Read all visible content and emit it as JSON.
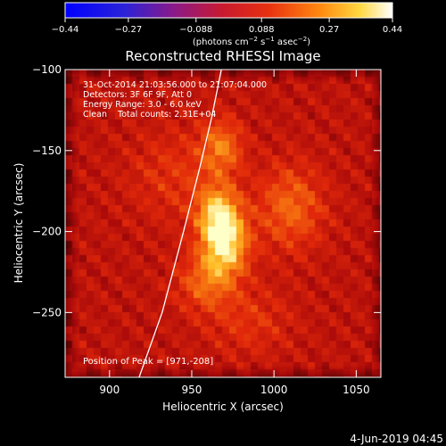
{
  "colorbar": {
    "ticks": [
      "−0.44",
      "−0.27",
      "−0.088",
      "0.088",
      "0.27",
      "0.44"
    ],
    "tick_values": [
      -0.44,
      -0.27,
      -0.088,
      0.088,
      0.27,
      0.44
    ],
    "units_html": "(photons cm<tspan baseline-shift=\"super\" font-size=\"7\">−2</tspan> s<tspan baseline-shift=\"super\" font-size=\"7\">−1</tspan> asec<tspan baseline-shift=\"super\" font-size=\"7\">−2</tspan>)",
    "range": [
      -0.44,
      0.44
    ]
  },
  "chart_data": {
    "type": "heatmap",
    "title": "Reconstructed RHESSI Image",
    "xlabel": "Heliocentric X (arcsec)",
    "ylabel": "Heliocentric Y (arcsec)",
    "xlim": [
      873,
      1065
    ],
    "ylim": [
      -290,
      -100
    ],
    "x_ticks": [
      900,
      950,
      1000,
      1050
    ],
    "y_ticks": [
      -100,
      -150,
      -200,
      -250
    ],
    "annotations": {
      "time_range": "31-Oct-2014 21:03:56.000 to 21:07:04.000",
      "detectors": "Detectors: 3F 6F 9F, Att 0",
      "energy": "Energy Range: 3.0 - 6.0 keV",
      "clean": "Clean    Total counts: 2.31E+04",
      "peak": "Position of Peak = [971,-208]"
    },
    "peak": [
      971,
      -208
    ],
    "limb_points": [
      [
        918,
        -290
      ],
      [
        932,
        -250
      ],
      [
        945,
        -200
      ],
      [
        955,
        -160
      ],
      [
        962,
        -130
      ],
      [
        968,
        -100
      ]
    ],
    "sources": [
      {
        "x": 970,
        "y": -208,
        "amp": 1.0,
        "sx": 10,
        "sy": 14
      },
      {
        "x": 966,
        "y": -188,
        "amp": 0.75,
        "sx": 9,
        "sy": 12
      },
      {
        "x": 968,
        "y": -148,
        "amp": 0.55,
        "sx": 9,
        "sy": 12
      },
      {
        "x": 1010,
        "y": -185,
        "amp": 0.5,
        "sx": 14,
        "sy": 18
      },
      {
        "x": 958,
        "y": -232,
        "amp": 0.45,
        "sx": 12,
        "sy": 12
      },
      {
        "x": 940,
        "y": -165,
        "amp": 0.25,
        "sx": 20,
        "sy": 20
      },
      {
        "x": 985,
        "y": -255,
        "amp": 0.25,
        "sx": 18,
        "sy": 15
      }
    ],
    "colorscale": "hot",
    "grid": false
  },
  "footer": {
    "date": "4-Jun-2019 04:45"
  }
}
